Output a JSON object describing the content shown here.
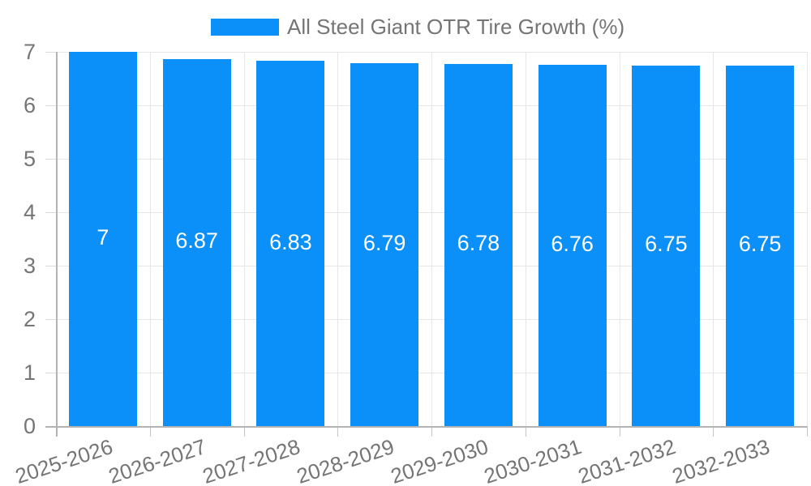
{
  "chart_data": {
    "type": "bar",
    "title": "",
    "xlabel": "",
    "ylabel": "",
    "legend": {
      "position": "top",
      "label": "All Steel Giant OTR Tire Growth (%)"
    },
    "categories": [
      "2025-2026",
      "2026-2027",
      "2027-2028",
      "2028-2029",
      "2029-2030",
      "2030-2031",
      "2031-2032",
      "2032-2033"
    ],
    "series": [
      {
        "name": "All Steel Giant OTR Tire Growth (%)",
        "values": [
          7,
          6.87,
          6.83,
          6.79,
          6.78,
          6.76,
          6.75,
          6.75
        ]
      }
    ],
    "bar_labels": [
      "7",
      "6.87",
      "6.83",
      "6.79",
      "6.78",
      "6.76",
      "6.75",
      "6.75"
    ],
    "ylim": [
      0,
      7
    ],
    "yticks": [
      "0",
      "1",
      "2",
      "3",
      "4",
      "5",
      "6",
      "7"
    ],
    "grid": true,
    "colors": {
      "bar": "#0a90f8",
      "gridline": "#e6e6e6",
      "axis": "#b3b3b3",
      "tick_text": "#757575",
      "bar_label_text": "#ffffff",
      "background": "#ffffff"
    }
  }
}
